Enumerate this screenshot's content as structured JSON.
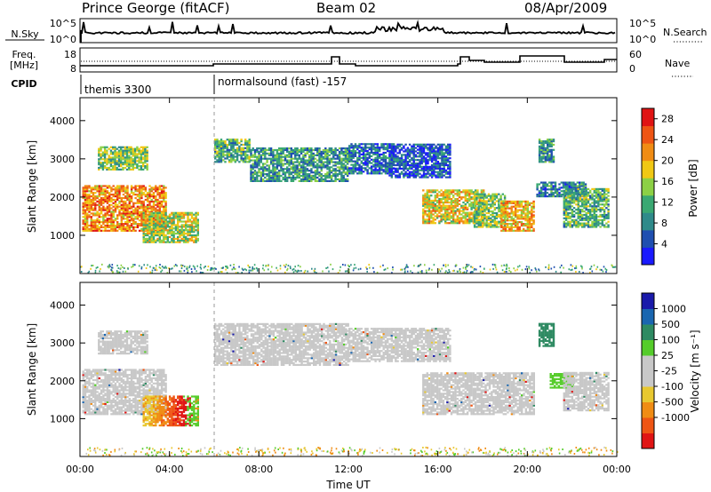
{
  "header": {
    "station": "Prince George (fitACF)",
    "beam": "Beam 02",
    "date": "08/Apr/2009"
  },
  "top_panels": {
    "nsky": {
      "label": "N.Sky",
      "left_ticks": [
        "10^5",
        "10^0"
      ],
      "right_ticks": [
        "10^5",
        "10^0"
      ],
      "right_label": "N.Search"
    },
    "freq": {
      "label_1": "Freq.",
      "label_2": "[MHz]",
      "left_ticks": [
        "18",
        "8"
      ],
      "right_ticks": [
        "60",
        "0"
      ],
      "right_label": "Nave"
    },
    "cpid": {
      "label": "CPID",
      "segments": [
        {
          "start_hour": 0,
          "text": "themis 3300"
        },
        {
          "start_hour": 6.0,
          "text": "normalsound (fast) -157"
        }
      ]
    }
  },
  "colors": {
    "power_scale": [
      "#1a1aff",
      "#1f4fb0",
      "#2f8a8a",
      "#3aa872",
      "#8cd045",
      "#f0c814",
      "#f08c14",
      "#ee5514",
      "#e01414"
    ],
    "velocity_scale": [
      "#e01414",
      "#ee5514",
      "#f08c14",
      "#e8c830",
      "#c8c8c8",
      "#c8c8c8",
      "#55cc2a",
      "#2e8a62",
      "#1a66b0",
      "#1a1aaa"
    ],
    "gray_scatter": "#c8c8c8"
  },
  "chart_data": [
    {
      "type": "heatmap",
      "name_axis": "power",
      "ylabel": "Slant Range [km]",
      "xlim_hours": [
        0,
        24
      ],
      "ylim": [
        0,
        4600
      ],
      "yticks": [
        "1000",
        "2000",
        "3000",
        "4000"
      ],
      "colorbar": {
        "label": "Power [dB]",
        "ticks": [
          "4",
          "8",
          "12",
          "16",
          "20",
          "24",
          "28"
        ],
        "range": [
          0,
          30
        ]
      },
      "regions": [
        {
          "t0": 0.1,
          "t1": 3.8,
          "r0": 1100,
          "r1": 2300,
          "level": 22
        },
        {
          "t0": 0.8,
          "t1": 3.0,
          "r0": 2700,
          "r1": 3300,
          "level": 14
        },
        {
          "t0": 2.8,
          "t1": 5.3,
          "r0": 800,
          "r1": 1600,
          "level": 16
        },
        {
          "t0": 6.0,
          "t1": 7.6,
          "r0": 2900,
          "r1": 3500,
          "level": 12
        },
        {
          "t0": 7.6,
          "t1": 12.0,
          "r0": 2400,
          "r1": 3300,
          "level": 10
        },
        {
          "t0": 12.0,
          "t1": 14.0,
          "r0": 2600,
          "r1": 3400,
          "level": 7
        },
        {
          "t0": 13.8,
          "t1": 16.5,
          "r0": 2500,
          "r1": 3400,
          "level": 5
        },
        {
          "t0": 15.3,
          "t1": 18.0,
          "r0": 1300,
          "r1": 2200,
          "level": 18
        },
        {
          "t0": 17.6,
          "t1": 19.0,
          "r0": 1200,
          "r1": 2100,
          "level": 14
        },
        {
          "t0": 18.8,
          "t1": 20.3,
          "r0": 1100,
          "r1": 1900,
          "level": 20
        },
        {
          "t0": 20.5,
          "t1": 21.2,
          "r0": 2900,
          "r1": 3500,
          "level": 10
        },
        {
          "t0": 20.4,
          "t1": 22.6,
          "r0": 2000,
          "r1": 2400,
          "level": 8
        },
        {
          "t0": 21.6,
          "t1": 23.6,
          "r0": 1200,
          "r1": 2200,
          "level": 12
        }
      ]
    },
    {
      "type": "heatmap",
      "name_axis": "velocity",
      "xlabel": "Time UT",
      "ylabel": "Slant Range [km]",
      "xlim_hours": [
        0,
        24
      ],
      "ylim": [
        0,
        4600
      ],
      "yticks": [
        "1000",
        "2000",
        "3000",
        "4000"
      ],
      "xticks": [
        "00:00",
        "04:00",
        "08:00",
        "12:00",
        "16:00",
        "20:00",
        "00:00"
      ],
      "xtick_hours": [
        0,
        4,
        8,
        12,
        16,
        20,
        24
      ],
      "colorbar": {
        "label": "Velocity [m s⁻¹]",
        "ticks": [
          "1000",
          "500",
          "100",
          "25",
          "-25",
          "-100",
          "-500",
          "-1000"
        ]
      },
      "regions": [
        {
          "t0": 0.1,
          "t1": 3.8,
          "r0": 1100,
          "r1": 2300,
          "class": "gray"
        },
        {
          "t0": 0.8,
          "t1": 3.0,
          "r0": 2700,
          "r1": 3300,
          "class": "gray"
        },
        {
          "t0": 2.8,
          "t1": 5.3,
          "r0": 800,
          "r1": 1600,
          "class": "mixed"
        },
        {
          "t0": 6.0,
          "t1": 12.0,
          "r0": 2400,
          "r1": 3500,
          "class": "gray"
        },
        {
          "t0": 12.0,
          "t1": 16.5,
          "r0": 2500,
          "r1": 3400,
          "class": "gray"
        },
        {
          "t0": 15.3,
          "t1": 20.3,
          "r0": 1100,
          "r1": 2200,
          "class": "gray"
        },
        {
          "t0": 20.5,
          "t1": 21.2,
          "r0": 2900,
          "r1": 3500,
          "class": "teal"
        },
        {
          "t0": 21.0,
          "t1": 22.0,
          "r0": 1800,
          "r1": 2200,
          "class": "green"
        },
        {
          "t0": 21.6,
          "t1": 23.6,
          "r0": 1200,
          "r1": 2200,
          "class": "gray"
        }
      ]
    }
  ]
}
